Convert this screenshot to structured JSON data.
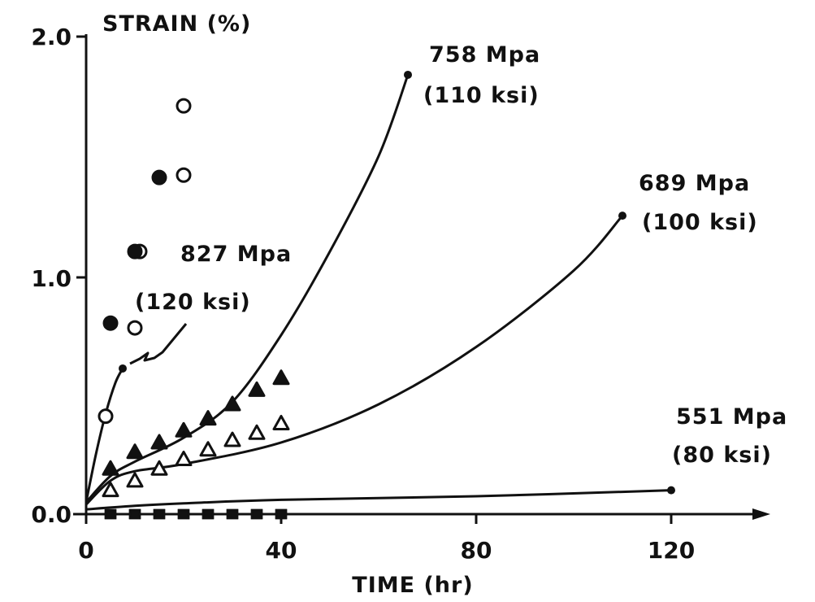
{
  "chart_data": {
    "type": "scatter",
    "xlabel": "TIME (hr)",
    "ylabel": "STRAIN (%)",
    "xlim": [
      0,
      140
    ],
    "ylim": [
      0,
      2.0
    ],
    "xticks": [
      "0",
      "40",
      "80",
      "120"
    ],
    "yticks": [
      "0.0",
      "1.0",
      "2.0"
    ],
    "grid": false,
    "colors": {
      "ink": "#111111",
      "background": "#ffffff"
    },
    "annotations": [
      {
        "line1": "758 Mpa",
        "line2": "(110 ksi)"
      },
      {
        "line1": "689 Mpa",
        "line2": "(100 ksi)"
      },
      {
        "line1": "827 Mpa",
        "line2": "(120 ksi)"
      },
      {
        "line1": "551 Mpa",
        "line2": "(80 ksi)"
      }
    ],
    "curves": [
      {
        "stress": "827 Mpa",
        "points": [
          [
            0,
            0.05
          ],
          [
            2,
            0.25
          ],
          [
            4,
            0.42
          ],
          [
            6,
            0.55
          ],
          [
            7.5,
            0.61
          ]
        ],
        "end": [
          7.5,
          0.61
        ]
      },
      {
        "stress": "758 Mpa",
        "points": [
          [
            0,
            0.05
          ],
          [
            5,
            0.16
          ],
          [
            10,
            0.22
          ],
          [
            20,
            0.32
          ],
          [
            30,
            0.47
          ],
          [
            40,
            0.75
          ],
          [
            50,
            1.1
          ],
          [
            60,
            1.5
          ],
          [
            66,
            1.84
          ]
        ],
        "end": [
          66,
          1.84
        ]
      },
      {
        "stress": "689 Mpa",
        "points": [
          [
            0,
            0.04
          ],
          [
            5,
            0.14
          ],
          [
            10,
            0.18
          ],
          [
            20,
            0.21
          ],
          [
            40,
            0.3
          ],
          [
            60,
            0.46
          ],
          [
            80,
            0.7
          ],
          [
            100,
            1.02
          ],
          [
            110,
            1.25
          ]
        ],
        "end": [
          110,
          1.25
        ]
      },
      {
        "stress": "551 Mpa",
        "points": [
          [
            0,
            0.02
          ],
          [
            10,
            0.035
          ],
          [
            20,
            0.045
          ],
          [
            40,
            0.06
          ],
          [
            80,
            0.075
          ],
          [
            120,
            0.1
          ]
        ],
        "end": [
          120,
          0.1
        ]
      }
    ],
    "series": [
      {
        "marker": "open-circle",
        "points": [
          [
            4,
            0.41
          ],
          [
            10,
            0.78
          ],
          [
            11,
            1.1
          ],
          [
            20,
            1.42
          ],
          [
            20,
            1.71
          ]
        ]
      },
      {
        "marker": "filled-circle",
        "points": [
          [
            5,
            0.8
          ],
          [
            10,
            1.1
          ],
          [
            15,
            1.41
          ]
        ]
      },
      {
        "marker": "filled-triangle",
        "points": [
          [
            5,
            0.19
          ],
          [
            10,
            0.26
          ],
          [
            15,
            0.3
          ],
          [
            20,
            0.35
          ],
          [
            25,
            0.4
          ],
          [
            30,
            0.46
          ],
          [
            35,
            0.52
          ],
          [
            40,
            0.57
          ]
        ]
      },
      {
        "marker": "open-triangle",
        "points": [
          [
            5,
            0.1
          ],
          [
            10,
            0.14
          ],
          [
            15,
            0.19
          ],
          [
            20,
            0.23
          ],
          [
            25,
            0.27
          ],
          [
            30,
            0.31
          ],
          [
            35,
            0.34
          ],
          [
            40,
            0.38
          ]
        ]
      },
      {
        "marker": "open-square",
        "points": [
          [
            5,
            0.0
          ],
          [
            10,
            0.0
          ],
          [
            15,
            0.0
          ],
          [
            20,
            0.0
          ],
          [
            25,
            0.0
          ],
          [
            30,
            0.0
          ],
          [
            35,
            0.0
          ],
          [
            40,
            0.0
          ]
        ]
      },
      {
        "marker": "filled-square",
        "points": [
          [
            5,
            0.0
          ],
          [
            10,
            0.0
          ],
          [
            15,
            0.0
          ],
          [
            20,
            0.0
          ],
          [
            25,
            0.0
          ],
          [
            30,
            0.0
          ],
          [
            35,
            0.0
          ],
          [
            40,
            0.0
          ]
        ]
      }
    ]
  }
}
